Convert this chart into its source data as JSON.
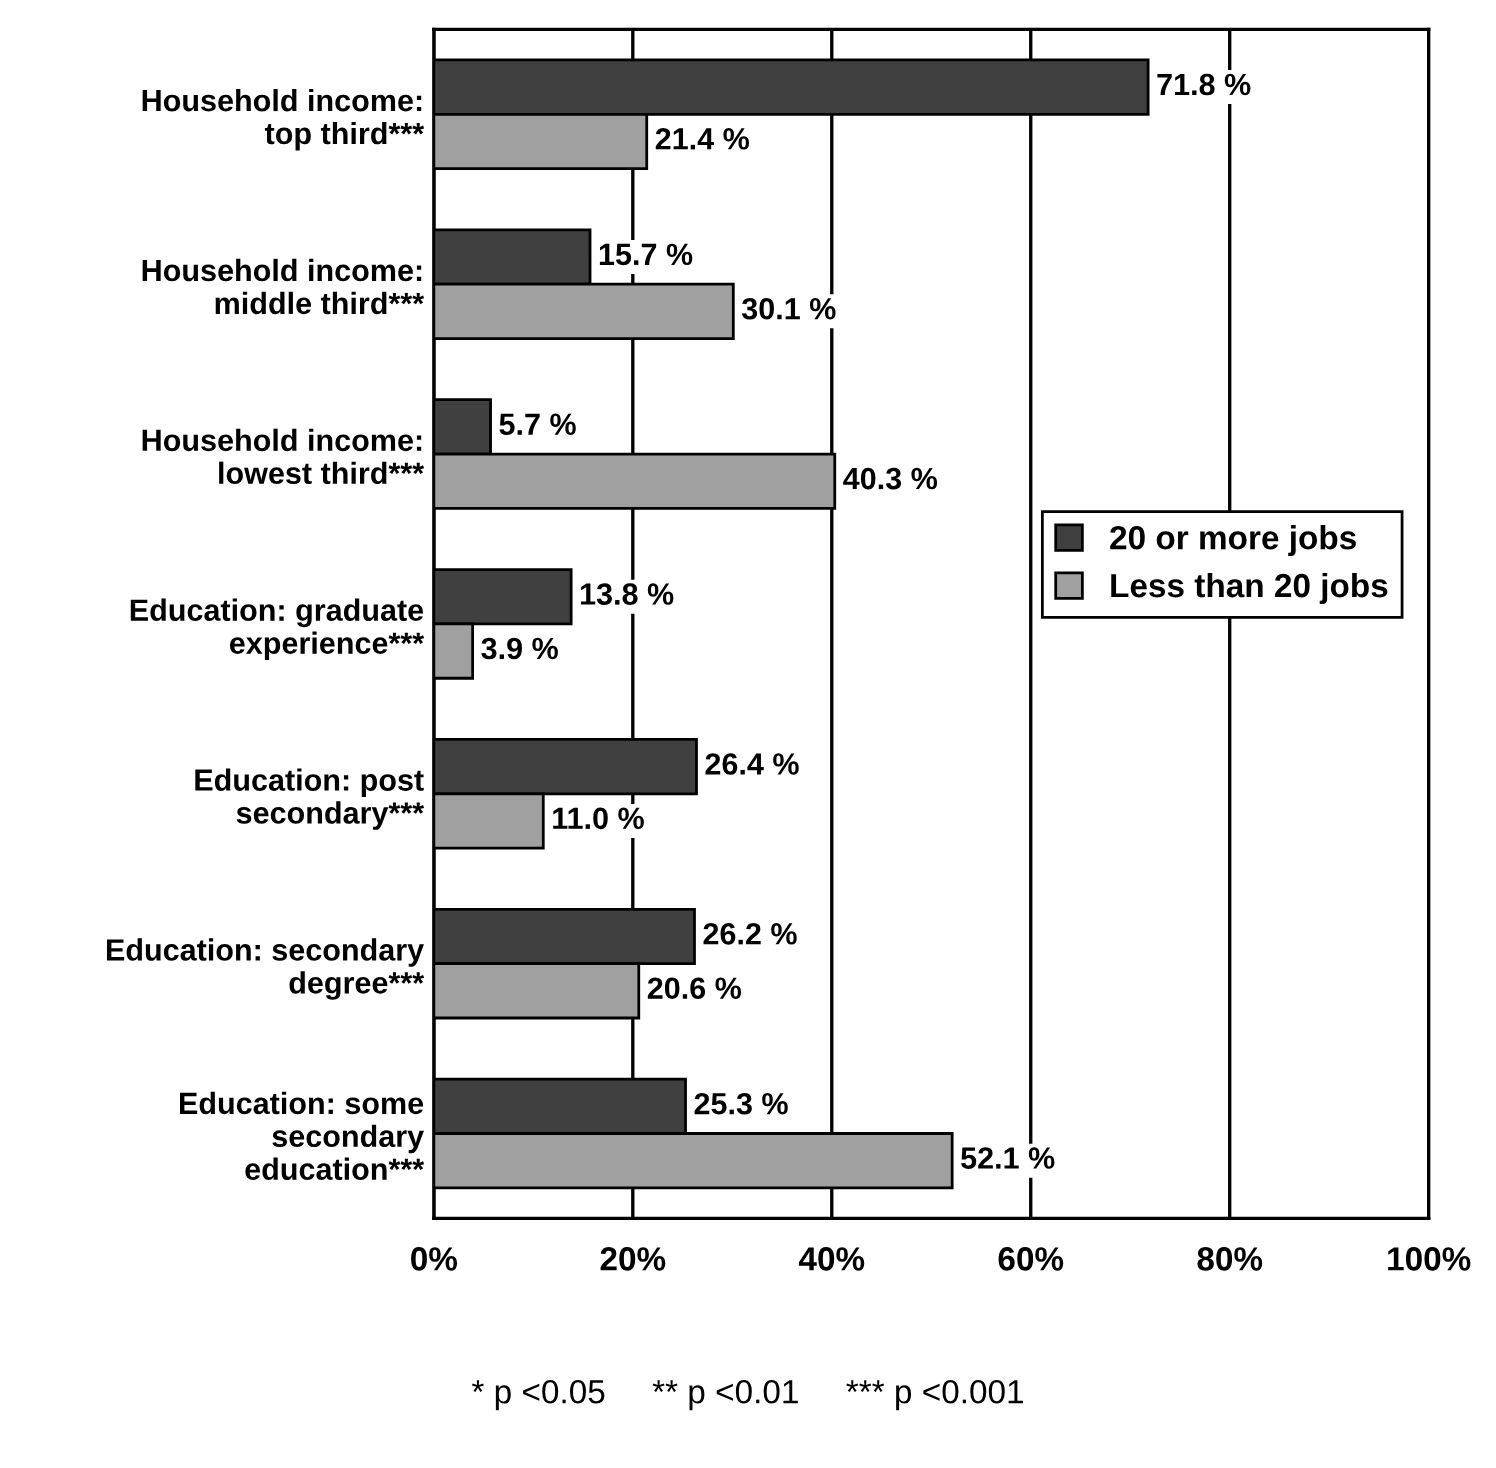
{
  "chart_data": {
    "type": "bar",
    "orientation": "horizontal",
    "categories": [
      "Household income:\ntop third***",
      "Household income:\nmiddle third***",
      "Household income:\nlowest third***",
      "Education: graduate\nexperience***",
      "Education: post\nsecondary***",
      "Education: secondary\ndegree***",
      "Education: some\nsecondary\neducation***"
    ],
    "series": [
      {
        "name": "20 or more jobs",
        "color": "#404040",
        "values": [
          71.8,
          15.7,
          5.7,
          13.8,
          26.4,
          26.2,
          25.3
        ],
        "value_labels": [
          "71.8 %",
          "15.7 %",
          "5.7 %",
          "13.8 %",
          "26.4 %",
          "26.2 %",
          "25.3 %"
        ]
      },
      {
        "name": "Less than 20 jobs",
        "color": "#a0a0a0",
        "values": [
          21.4,
          30.1,
          40.3,
          3.9,
          11.0,
          20.6,
          52.1
        ],
        "value_labels": [
          "21.4 %",
          "30.1 %",
          "40.3 %",
          "3.9 %",
          "11.0 %",
          "20.6 %",
          "52.1 %"
        ]
      }
    ],
    "xlim": [
      0,
      100
    ],
    "xticks": [
      {
        "value": 0,
        "label": "0%"
      },
      {
        "value": 20,
        "label": "20%"
      },
      {
        "value": 40,
        "label": "40%"
      },
      {
        "value": 60,
        "label": "60%"
      },
      {
        "value": 80,
        "label": "80%"
      },
      {
        "value": 100,
        "label": "100%"
      }
    ],
    "grid": "x",
    "legend": "right",
    "annotations": [
      "* p <0.05     ** p <0.01     *** p <0.001"
    ]
  }
}
